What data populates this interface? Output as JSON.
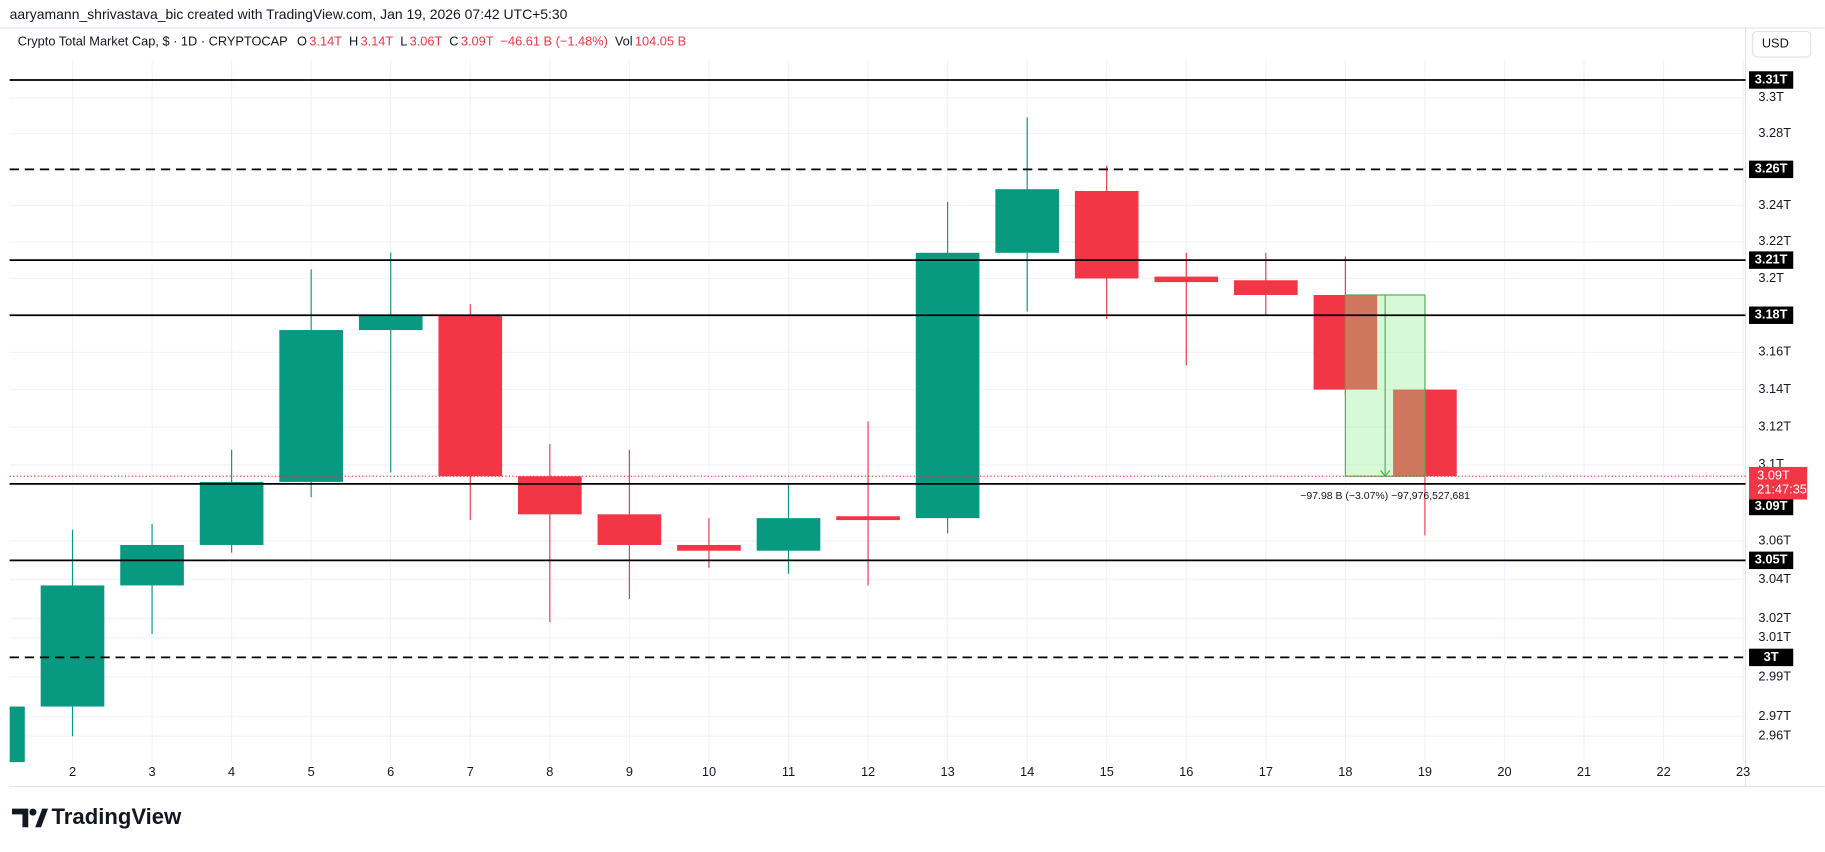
{
  "chart_data": {
    "type": "candlestick",
    "attribution": "aaryamann_shrivastava_bic created with TradingView.com, Jan 19, 2026 07:42 UTC+5:30",
    "header": {
      "symbol": "Crypto Total Market Cap, $ · 1D · CRYPTOCAP",
      "items": [
        {
          "key": "O",
          "value": "3.14T"
        },
        {
          "key": "H",
          "value": "3.14T"
        },
        {
          "key": "L",
          "value": "3.06T"
        },
        {
          "key": "C",
          "value": "3.09T"
        }
      ],
      "change": "−46.61 B (−1.48%)",
      "volume_key": "Vol",
      "volume": "104.05 B"
    },
    "currency": "USD",
    "brand": "TradingView",
    "up_color": "#089981",
    "down_color": "#f23645",
    "x": [
      1,
      2,
      3,
      4,
      5,
      6,
      7,
      8,
      9,
      10,
      11,
      12,
      13,
      14,
      15,
      16,
      17,
      18,
      19
    ],
    "open": [
      2.94,
      2.975,
      3.037,
      3.058,
      3.091,
      3.172,
      3.18,
      3.094,
      3.074,
      3.058,
      3.055,
      3.073,
      3.072,
      3.214,
      3.248,
      3.201,
      3.199,
      3.191,
      3.14
    ],
    "high": [
      2.975,
      3.066,
      3.069,
      3.108,
      3.205,
      3.214,
      3.186,
      3.111,
      3.108,
      3.072,
      3.09,
      3.123,
      3.242,
      3.289,
      3.262,
      3.214,
      3.214,
      3.212,
      3.141
    ],
    "low": [
      2.93,
      2.96,
      3.012,
      3.054,
      3.083,
      3.096,
      3.071,
      3.018,
      3.03,
      3.046,
      3.043,
      3.037,
      3.064,
      3.182,
      3.178,
      3.153,
      3.18,
      3.137,
      3.063
    ],
    "close": [
      2.975,
      3.037,
      3.058,
      3.091,
      3.172,
      3.18,
      3.094,
      3.074,
      3.058,
      3.055,
      3.072,
      3.071,
      3.214,
      3.249,
      3.2,
      3.198,
      3.191,
      3.14,
      3.094
    ],
    "xlim": [
      1.21,
      23.03
    ],
    "xticks": [
      2,
      3,
      4,
      5,
      6,
      7,
      8,
      9,
      10,
      11,
      12,
      13,
      14,
      15,
      16,
      17,
      18,
      19,
      20,
      21,
      22,
      23
    ],
    "ylim": [
      2.947,
      3.321
    ],
    "log_scale": true,
    "grid": true,
    "yticks": [
      {
        "value": 3.3,
        "label": "3.3T"
      },
      {
        "value": 3.28,
        "label": "3.28T"
      },
      {
        "value": 3.24,
        "label": "3.24T"
      },
      {
        "value": 3.22,
        "label": "3.22T"
      },
      {
        "value": 3.2,
        "label": "3.2T"
      },
      {
        "value": 3.16,
        "label": "3.16T"
      },
      {
        "value": 3.14,
        "label": "3.14T"
      },
      {
        "value": 3.12,
        "label": "3.12T"
      },
      {
        "value": 3.1,
        "label": "3.1T"
      },
      {
        "value": 3.06,
        "label": "3.06T"
      },
      {
        "value": 3.04,
        "label": "3.04T"
      },
      {
        "value": 3.02,
        "label": "3.02T"
      },
      {
        "value": 3.01,
        "label": "3.01T"
      },
      {
        "value": 2.99,
        "label": "2.99T"
      },
      {
        "value": 2.97,
        "label": "2.97T"
      },
      {
        "value": 2.96,
        "label": "2.96T"
      }
    ],
    "levels": [
      {
        "value": 3.31,
        "label": "3.31T",
        "style": "solid"
      },
      {
        "value": 3.26,
        "label": "3.26T",
        "style": "dashed"
      },
      {
        "value": 3.21,
        "label": "3.21T",
        "style": "solid"
      },
      {
        "value": 3.18,
        "label": "3.18T",
        "style": "solid"
      },
      {
        "value": 3.09,
        "label": "3.09T",
        "style": "solid"
      },
      {
        "value": 3.05,
        "label": "3.05T",
        "style": "solid"
      },
      {
        "value": 3,
        "label": "3T",
        "style": "dashed"
      }
    ],
    "last_price": {
      "value": 3.094,
      "label": "3.09T",
      "countdown": "21:47:35"
    },
    "measure": {
      "x1": 18,
      "x2": 19,
      "y1": 3.191,
      "y2": 3.094,
      "label": "−97.98 B (−3.07%) −97,976,527,681"
    }
  }
}
